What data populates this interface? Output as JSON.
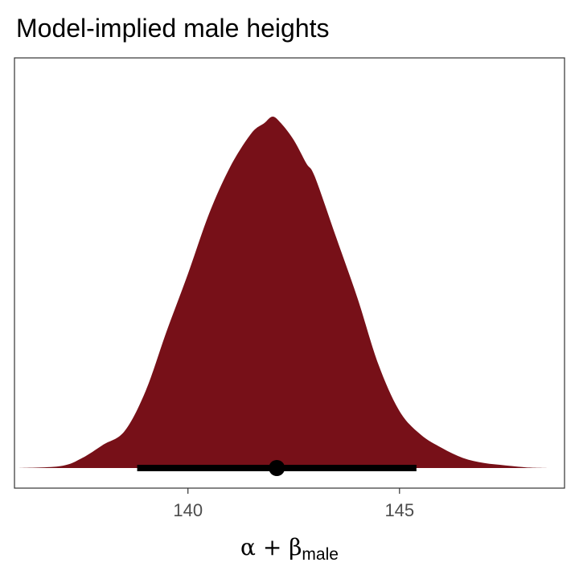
{
  "chart_data": {
    "type": "area",
    "title": "Model-implied male heights",
    "xlabel": {
      "main": "α + β",
      "subscript": "male"
    },
    "ylabel": "",
    "xlim": [
      135.9,
      148.9
    ],
    "ylim": [
      0,
      1.1
    ],
    "x_ticks": [
      140,
      145
    ],
    "x_tick_labels": [
      "140",
      "145"
    ],
    "y_axis_shown": false,
    "grid": false,
    "fill_color": "#771018",
    "interval_color": "#000000",
    "density": {
      "x": [
        136.0,
        137.0,
        137.5,
        138.0,
        138.5,
        139.0,
        139.5,
        140.0,
        140.5,
        141.0,
        141.5,
        141.8,
        142.0,
        142.2,
        142.5,
        142.8,
        143.0,
        143.5,
        144.0,
        144.5,
        145.0,
        145.5,
        146.0,
        146.5,
        147.0,
        147.5,
        148.0,
        148.6
      ],
      "y": [
        0.0,
        0.006,
        0.03,
        0.07,
        0.11,
        0.23,
        0.41,
        0.58,
        0.76,
        0.9,
        1.0,
        1.03,
        1.05,
        1.03,
        0.98,
        0.91,
        0.87,
        0.69,
        0.51,
        0.31,
        0.17,
        0.1,
        0.06,
        0.03,
        0.015,
        0.008,
        0.002,
        0.0
      ]
    },
    "point_estimate": 142.1,
    "interval": [
      138.8,
      145.4
    ]
  }
}
